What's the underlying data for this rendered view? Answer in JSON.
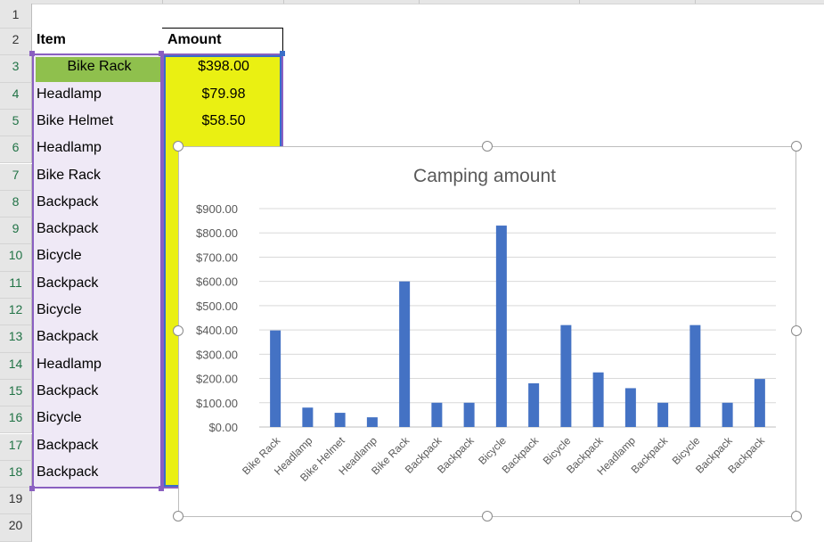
{
  "rows": [
    "1",
    "2",
    "3",
    "4",
    "5",
    "6",
    "7",
    "8",
    "9",
    "10",
    "11",
    "12",
    "13",
    "14",
    "15",
    "16",
    "17",
    "18",
    "19",
    "20"
  ],
  "headers": {
    "item": "Item",
    "amount": "Amount"
  },
  "items": [
    "Bike Rack",
    "Headlamp",
    "Bike Helmet",
    "Headlamp",
    "Bike Rack",
    "Backpack",
    "Backpack",
    "Bicycle",
    "Backpack",
    "Bicycle",
    "Backpack",
    "Headlamp",
    "Backpack",
    "Bicycle",
    "Backpack",
    "Backpack"
  ],
  "visible_amounts": [
    "$398.00",
    "$79.98",
    "$58.50"
  ],
  "colors": {
    "item_range": "#efe9f6",
    "amount_range": "#eaf012",
    "selected_cell": "#8fc04d",
    "bar": "#4472c4",
    "range_border_item": "#8a5fc1",
    "range_border_amount": "#3a6ec8"
  },
  "chart_data": {
    "type": "bar",
    "title": "Camping amount",
    "categories": [
      "Bike Rack",
      "Headlamp",
      "Bike Helmet",
      "Headlamp",
      "Bike Rack",
      "Backpack",
      "Backpack",
      "Bicycle",
      "Backpack",
      "Bicycle",
      "Backpack",
      "Headlamp",
      "Backpack",
      "Bicycle",
      "Backpack",
      "Backpack"
    ],
    "values": [
      398,
      79.98,
      58.5,
      40,
      600,
      100,
      100,
      830,
      180,
      420,
      225,
      160,
      100,
      420,
      100,
      198
    ],
    "ylim": [
      0,
      900
    ],
    "yticks": [
      "$0.00",
      "$100.00",
      "$200.00",
      "$300.00",
      "$400.00",
      "$500.00",
      "$600.00",
      "$700.00",
      "$800.00",
      "$900.00"
    ],
    "grid": true,
    "legend": "none"
  }
}
